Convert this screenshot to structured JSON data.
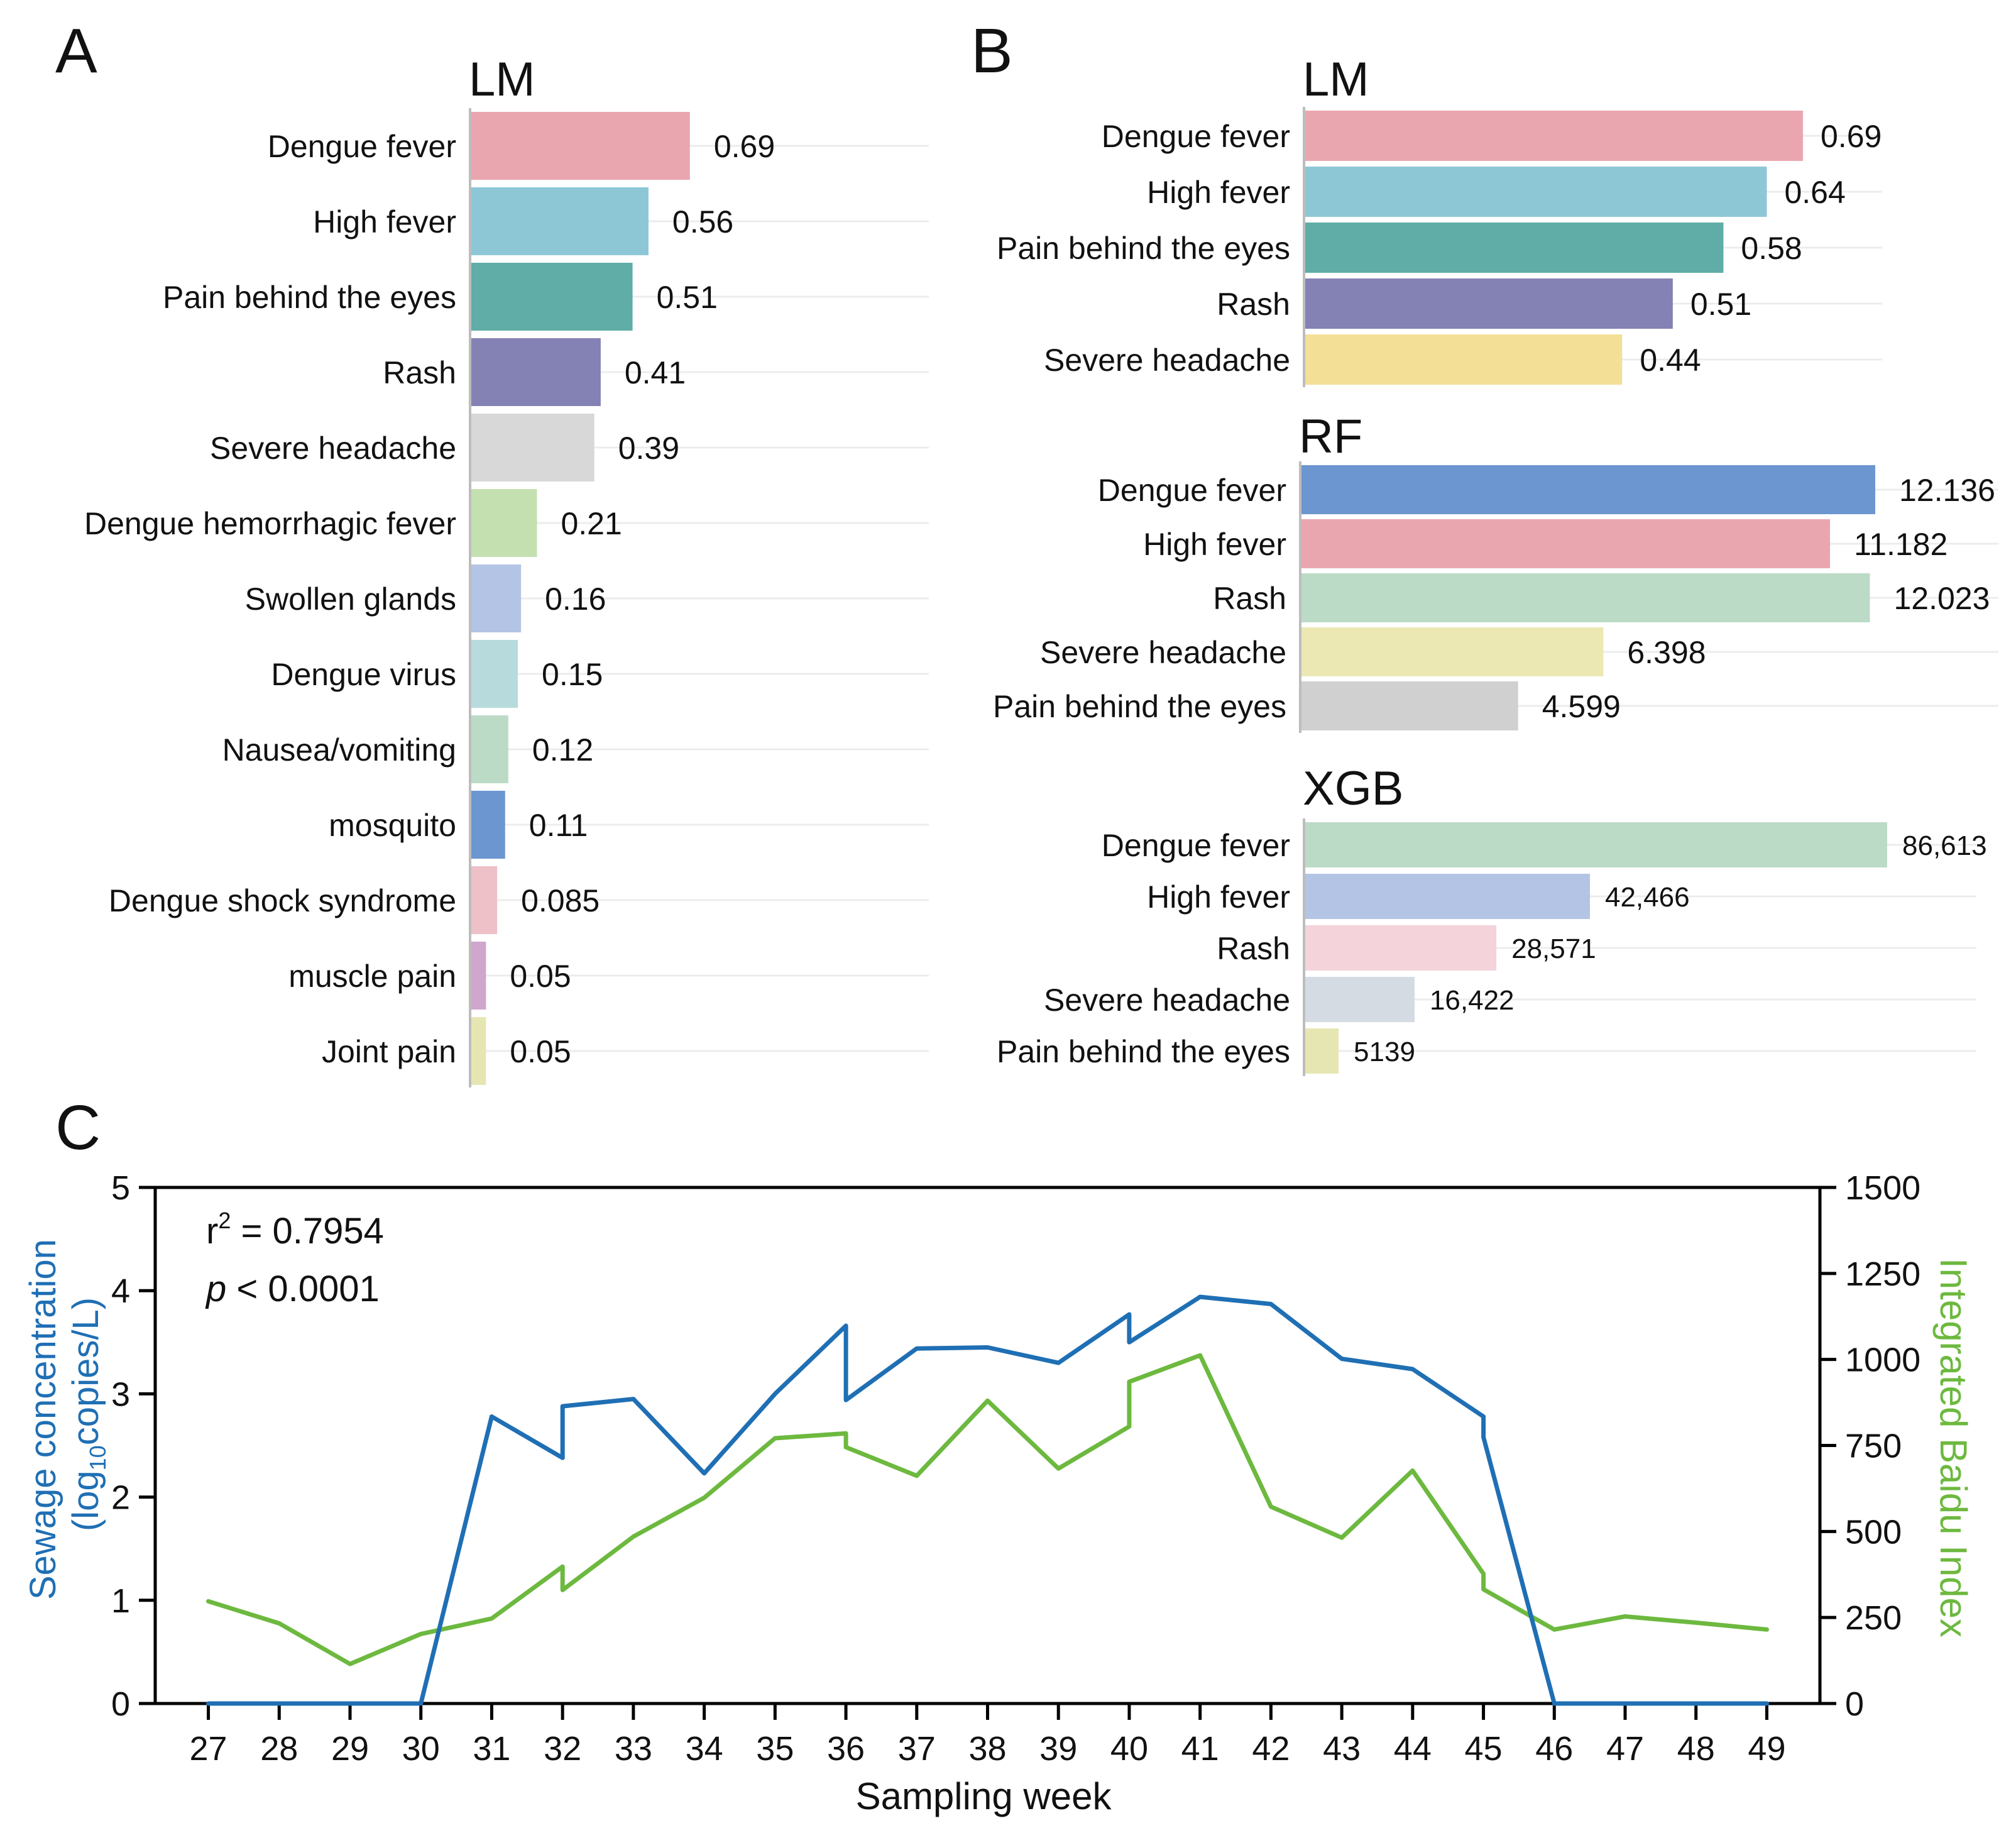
{
  "panel_labels": {
    "a": "A",
    "b": "B",
    "c": "C"
  },
  "chart_data": [
    {
      "id": "A-LM",
      "type": "bar",
      "orientation": "horizontal",
      "panel": "A",
      "title": "LM",
      "xlim": [
        0,
        1
      ],
      "categories": [
        "Dengue fever",
        "High fever",
        "Pain behind the eyes",
        "Rash",
        "Severe headache",
        "Dengue hemorrhagic fever",
        "Swollen glands",
        "Dengue virus",
        "Nausea/vomiting",
        "mosquito",
        "Dengue shock syndrome",
        "muscle pain",
        "Joint pain"
      ],
      "values": [
        0.69,
        0.56,
        0.51,
        0.41,
        0.39,
        0.21,
        0.16,
        0.15,
        0.12,
        0.11,
        0.085,
        0.05,
        0.05
      ],
      "value_labels": [
        "0.69",
        "0.56",
        "0.51",
        "0.41",
        "0.39",
        "0.21",
        "0.16",
        "0.15",
        "0.12",
        "0.11",
        "0.085",
        "0.05",
        "0.05"
      ],
      "colors": [
        "#eaa6af",
        "#8dc7d6",
        "#5fada6",
        "#8482b4",
        "#d8d8d8",
        "#c5e0b0",
        "#b4c4e5",
        "#b7dbdd",
        "#bcdbc7",
        "#6b96cf",
        "#eec0c8",
        "#cfa6cc",
        "#e6e6b3"
      ]
    },
    {
      "id": "B-LM",
      "type": "bar",
      "orientation": "horizontal",
      "panel": "B",
      "title": "LM",
      "xlim": [
        0,
        0.69
      ],
      "categories": [
        "Dengue fever",
        "High fever",
        "Pain behind the eyes",
        "Rash",
        "Severe headache"
      ],
      "values": [
        0.69,
        0.64,
        0.58,
        0.51,
        0.44
      ],
      "value_labels": [
        "0.69",
        "0.64",
        "0.58",
        "0.51",
        "0.44"
      ],
      "colors": [
        "#eaa6af",
        "#8dc7d6",
        "#5fada6",
        "#8482b4",
        "#f3df96"
      ]
    },
    {
      "id": "B-RF",
      "type": "bar",
      "orientation": "horizontal",
      "panel": "B",
      "title": "RF",
      "xlim": [
        0,
        12.136
      ],
      "categories": [
        "Dengue fever",
        "High fever",
        "Rash",
        "Severe headache",
        "Pain behind the eyes"
      ],
      "values": [
        12.136,
        11.182,
        12.023,
        6.398,
        4.599
      ],
      "value_labels": [
        "12.136",
        "11.182",
        "12.023",
        "6.398",
        "4.599"
      ],
      "colors": [
        "#6b96cf",
        "#eaa6af",
        "#bcdbc7",
        "#ebe8b4",
        "#d0d0d0"
      ]
    },
    {
      "id": "B-XGB",
      "type": "bar",
      "orientation": "horizontal",
      "panel": "B",
      "title": "XGB",
      "xlim": [
        0,
        86613
      ],
      "categories": [
        "Dengue fever",
        "High fever",
        "Rash",
        "Severe headache",
        "Pain behind the eyes"
      ],
      "values": [
        86613,
        42466,
        28571,
        16422,
        5139
      ],
      "value_labels": [
        "86,613",
        "42,466",
        "28,571",
        "16,422",
        "5139"
      ],
      "colors": [
        "#bcdbc7",
        "#b4c4e5",
        "#f4d3da",
        "#d4dbe3",
        "#e6e6b3"
      ]
    },
    {
      "id": "C",
      "type": "line",
      "panel": "C",
      "xlabel": "Sampling week",
      "ylabel_left": [
        "Sewage concentration",
        "copies/L)"
      ],
      "ylabel_left_prefix": "(log",
      "ylabel_left_sub": "10",
      "ylabel_right": "Integrated Baidu Index",
      "xlim": [
        26.25,
        49.75
      ],
      "ylim_left": [
        0,
        5
      ],
      "ylim_right": [
        0,
        1500
      ],
      "x_ticks": [
        "27",
        "28",
        "29",
        "30",
        "31",
        "32",
        "33",
        "34",
        "35",
        "36",
        "37",
        "38",
        "39",
        "40",
        "41",
        "42",
        "43",
        "44",
        "45",
        "46",
        "47",
        "48",
        "49"
      ],
      "y_ticks_left": [
        "0",
        "1",
        "2",
        "3",
        "4",
        "5"
      ],
      "y_ticks_right": [
        "0",
        "250",
        "500",
        "750",
        "1000",
        "1250",
        "1500"
      ],
      "annotation_r2_label": "r",
      "annotation_r2_sup": "2",
      "annotation_r2_value": " = 0.7954",
      "annotation_p_label": "p",
      "annotation_p_value": " < 0.0001",
      "series": [
        {
          "name": "Sewage concentration",
          "axis": "left",
          "color": "#1f6fb4",
          "x": [
            27,
            28,
            29,
            30,
            31,
            32,
            32,
            33,
            34,
            35,
            36,
            36,
            37,
            38,
            39,
            40,
            40,
            41,
            42,
            43,
            44,
            45,
            45,
            46,
            47,
            48,
            49
          ],
          "y": [
            0,
            0,
            0,
            0,
            2.78,
            2.38,
            2.88,
            2.95,
            2.23,
            3.0,
            3.66,
            2.94,
            3.44,
            3.45,
            3.3,
            3.77,
            3.5,
            3.94,
            3.87,
            3.34,
            3.24,
            2.78,
            2.58,
            0,
            0,
            0,
            0
          ]
        },
        {
          "name": "Integrated Baidu Index",
          "axis": "right",
          "color": "#6db93f",
          "x": [
            27,
            28,
            29,
            30,
            31,
            32,
            32,
            33,
            34,
            35,
            36,
            36,
            37,
            38,
            39,
            40,
            40,
            41,
            42,
            43,
            44,
            45,
            45,
            46,
            47,
            48,
            49
          ],
          "y": [
            297,
            233,
            115,
            202,
            247,
            398,
            330,
            485,
            598,
            771,
            785,
            745,
            662,
            880,
            683,
            805,
            935,
            1012,
            572,
            482,
            677,
            377,
            332,
            215,
            253,
            235,
            215
          ]
        }
      ]
    }
  ]
}
